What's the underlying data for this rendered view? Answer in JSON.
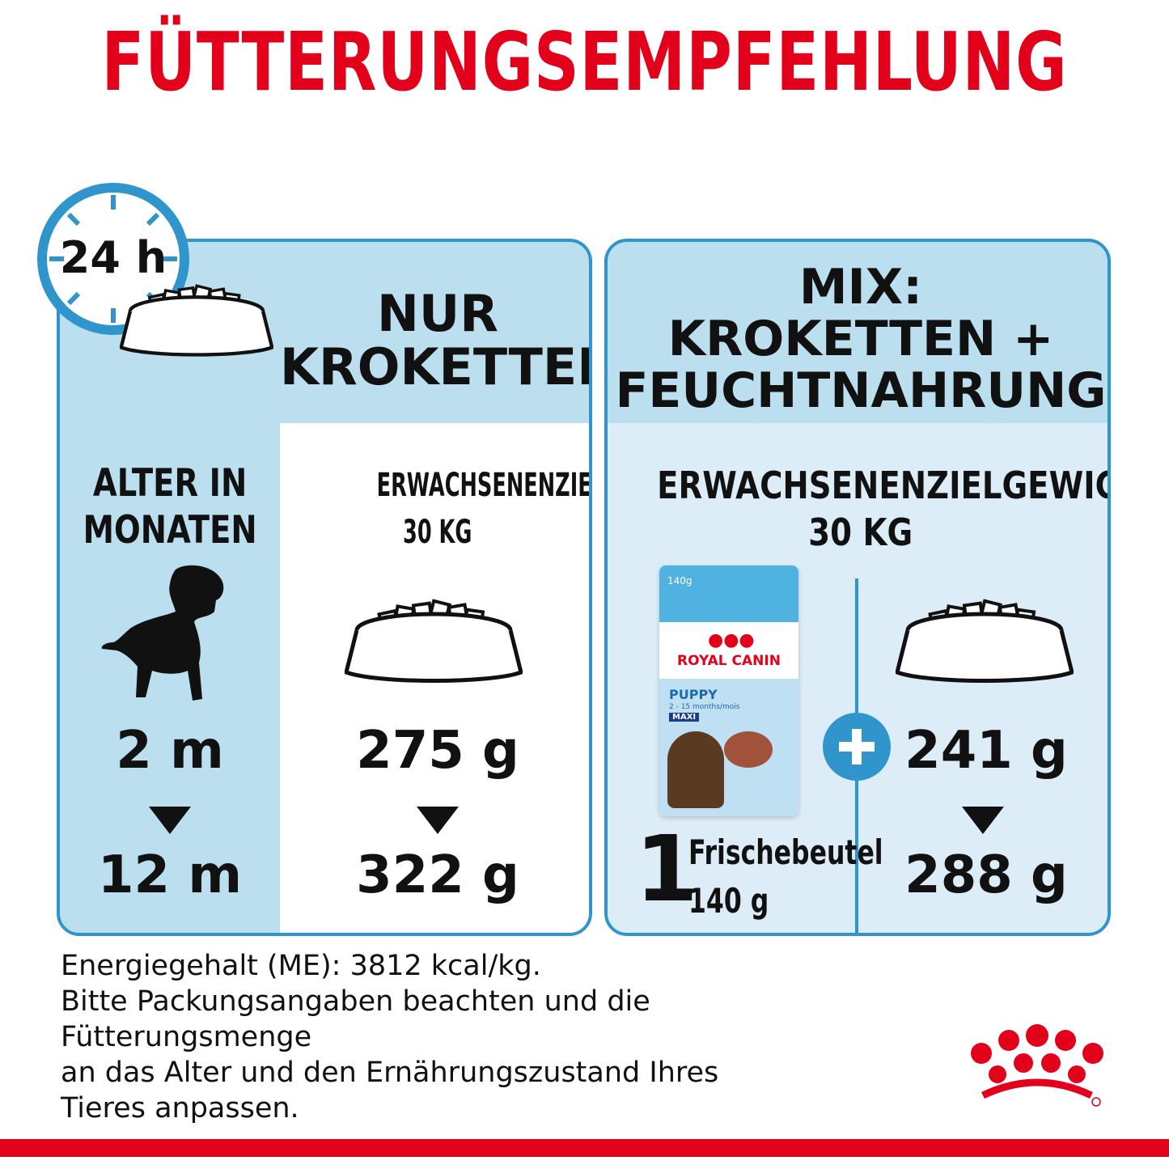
{
  "title": "FÜTTERUNGSEMPFEHLUNG",
  "clock_label": "24 h",
  "left_panel": {
    "heading": [
      "NUR",
      "KROKETTEN"
    ],
    "age_header": [
      "ALTER IN",
      "MONATEN"
    ],
    "weight_header": [
      "ERWACHSENENZIELGEWICHT:",
      "30 KG"
    ],
    "age_from": "2 m",
    "age_to": "12 m",
    "amount_from": "275 g",
    "amount_to": "322 g"
  },
  "right_panel": {
    "heading": [
      "MIX:",
      "KROKETTEN +",
      "FEUCHTNAHRUNG"
    ],
    "weight_header": [
      "ERWACHSENENZIELGEWICHT:",
      "30 KG"
    ],
    "pouch_count": "1",
    "pouch_label": "Frischebeutel",
    "pouch_weight": "140 g",
    "amount_from": "241 g",
    "amount_to": "288 g",
    "pouch_pack": {
      "weight": "140g",
      "brand": "ROYAL CANIN",
      "product": "PUPPY",
      "range": "2 - 15 months/mois",
      "size": "MAXI"
    }
  },
  "info_lines": [
    "Energiegehalt (ME): 3812 kcal/kg.",
    "Bitte Packungsangaben beachten und die",
    "Fütterungsmenge",
    "an das Alter und den Ernährungszustand Ihres",
    "Tieres anpassen."
  ],
  "colors": {
    "brand_red": "#e2001a",
    "panel_blue": "#bcdff0",
    "light_blue": "#dcedf7",
    "border_blue": "#2f95cc"
  },
  "icons": [
    "clock-icon",
    "bowl-icon",
    "puppy-silhouette-icon",
    "plus-icon",
    "royal-canin-crown-icon"
  ]
}
